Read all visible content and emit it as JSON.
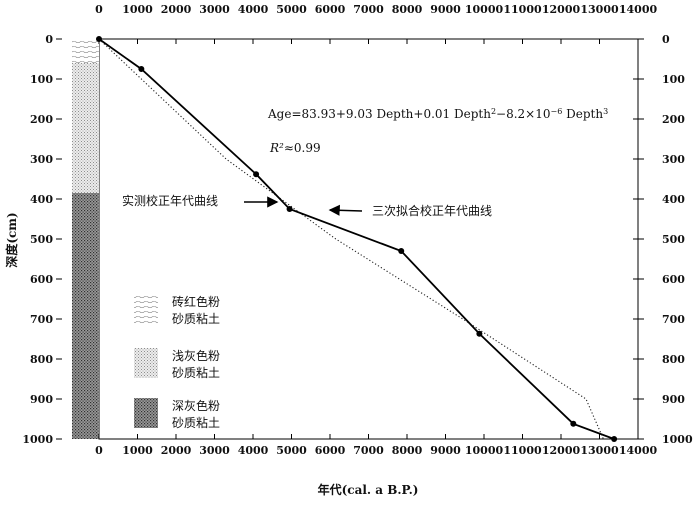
{
  "chart_data": {
    "type": "line",
    "xlabel": "年代(cal. a B.P.)",
    "ylabel": "深度(cm)",
    "xlim": [
      0,
      14000
    ],
    "ylim": [
      0,
      1000
    ],
    "y_inverted": true,
    "x_ticks": [
      "0",
      "1000",
      "2000",
      "3000",
      "4000",
      "5000",
      "6000",
      "7000",
      "8000",
      "9000",
      "10000",
      "11000",
      "12000",
      "13000",
      "14000"
    ],
    "y_ticks": [
      "0",
      "100",
      "200",
      "300",
      "400",
      "500",
      "600",
      "700",
      "800",
      "900",
      "1000"
    ],
    "series": [
      {
        "name": "实测校正年代曲线",
        "style": "solid-with-markers",
        "points": [
          {
            "x": 0,
            "y": 0
          },
          {
            "x": 1100,
            "y": 75
          },
          {
            "x": 4080,
            "y": 338
          },
          {
            "x": 4950,
            "y": 425
          },
          {
            "x": 7850,
            "y": 530
          },
          {
            "x": 9880,
            "y": 737
          },
          {
            "x": 12320,
            "y": 962
          },
          {
            "x": 13380,
            "y": 1000
          }
        ]
      },
      {
        "name": "三次拟合校正年代曲线",
        "style": "dotted",
        "points": [
          {
            "x": 0,
            "y": 0
          },
          {
            "x": 3300,
            "y": 300
          },
          {
            "x": 6150,
            "y": 500
          },
          {
            "x": 9450,
            "y": 700
          },
          {
            "x": 12650,
            "y": 900
          },
          {
            "x": 13100,
            "y": 1000
          }
        ]
      }
    ],
    "annotations": {
      "equation": "Age=83.93+9.03 Depth+0.01 Depth²−8.2×10⁻⁶ Depth³",
      "r2_symbol": "R²",
      "r2_value": "≈0.99",
      "label_measured": "实测校正年代曲线",
      "label_fitted": "三次拟合校正年代曲线"
    },
    "lithology": {
      "layers": [
        {
          "pattern": "brick-red",
          "from": 0,
          "to": 60
        },
        {
          "pattern": "light-gray",
          "from": 60,
          "to": 385
        },
        {
          "pattern": "dark-gray",
          "from": 385,
          "to": 1000
        }
      ],
      "legend": [
        {
          "pattern": "brick-red",
          "line1": "砖红色粉",
          "line2": "砂质粘土"
        },
        {
          "pattern": "light-gray",
          "line1": "浅灰色粉",
          "line2": "砂质粘土"
        },
        {
          "pattern": "dark-gray",
          "line1": "深灰色粉",
          "line2": "砂质粘土"
        }
      ]
    }
  }
}
